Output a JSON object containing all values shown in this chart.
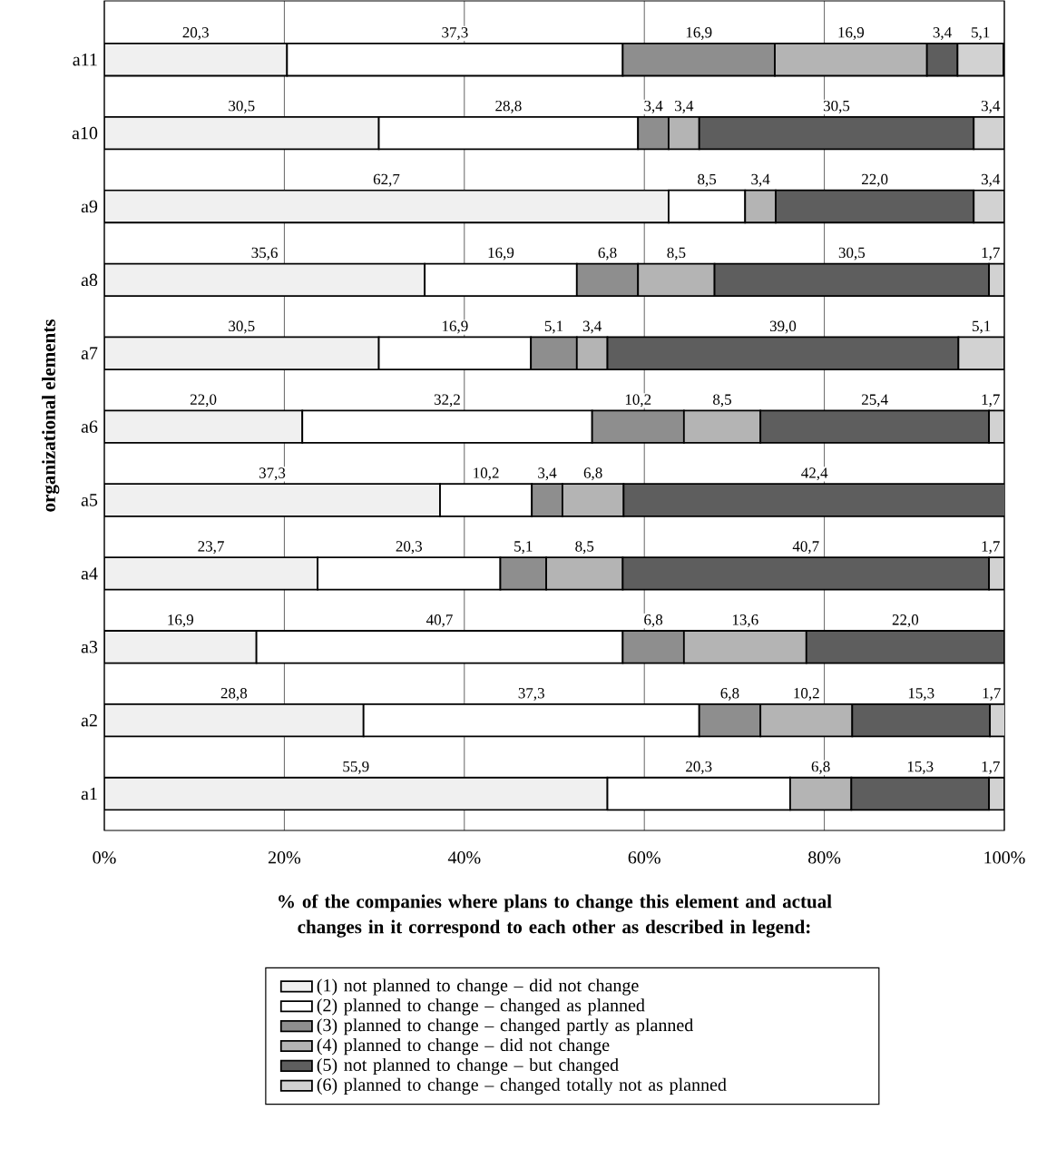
{
  "chart_data": {
    "type": "bar",
    "orientation": "horizontal",
    "stacked": true,
    "xlabel": "% of the companies where plans to change this element and actual changes in it correspond to each other as described in legend:",
    "ylabel": "organizational elements",
    "categories": [
      "a11",
      "a10",
      "a9",
      "a8",
      "a7",
      "a6",
      "a5",
      "a4",
      "a3",
      "a2",
      "a1"
    ],
    "series": [
      {
        "name": "(1) not planned to change – did not change",
        "color": "#f0f0f0",
        "values": [
          20.3,
          30.5,
          62.7,
          35.6,
          30.5,
          22.0,
          37.3,
          23.7,
          16.9,
          28.8,
          55.9
        ],
        "value_labels": [
          "20,3",
          "30,5",
          "62,7",
          "35,6",
          "30,5",
          "22,0",
          "37,3",
          "23,7",
          "16,9",
          "28,8",
          "55,9"
        ]
      },
      {
        "name": "(2) planned to change – changed as planned",
        "color": "#ffffff",
        "values": [
          37.3,
          28.8,
          8.5,
          16.9,
          16.9,
          32.2,
          10.2,
          20.3,
          40.7,
          37.3,
          20.3
        ],
        "value_labels": [
          "37,3",
          "28,8",
          "8,5",
          "16,9",
          "16,9",
          "32,2",
          "10,2",
          "20,3",
          "40,7",
          "37,3",
          "20,3"
        ]
      },
      {
        "name": "(3) planned to change – changed partly as planned",
        "color": "#8e8e8e",
        "values": [
          16.9,
          3.4,
          null,
          6.8,
          5.1,
          10.2,
          3.4,
          5.1,
          6.8,
          6.8,
          null
        ],
        "value_labels": [
          "16,9",
          "3,4",
          null,
          "6,8",
          "5,1",
          "10,2",
          "3,4",
          "5,1",
          "6,8",
          "6,8",
          null
        ]
      },
      {
        "name": "(4) planned to change – did not change",
        "color": "#b4b4b4",
        "values": [
          16.9,
          3.4,
          3.4,
          8.5,
          3.4,
          8.5,
          6.8,
          8.5,
          13.6,
          10.2,
          6.8
        ],
        "value_labels": [
          "16,9",
          "3,4",
          "3,4",
          "8,5",
          "3,4",
          "8,5",
          "6,8",
          "8,5",
          "13,6",
          "10,2",
          "6,8"
        ]
      },
      {
        "name": "(5) not planned to change – but changed",
        "color": "#5e5e5e",
        "values": [
          3.4,
          30.5,
          22.0,
          30.5,
          39.0,
          25.4,
          42.4,
          40.7,
          22.0,
          15.3,
          15.3
        ],
        "value_labels": [
          "3,4",
          "30,5",
          "22,0",
          "30,5",
          "39,0",
          "25,4",
          "42,4",
          "40,7",
          "22,0",
          "15,3",
          "15,3"
        ]
      },
      {
        "name": "(6) planned to change – changed totally not as planned",
        "color": "#d2d2d2",
        "values": [
          5.1,
          3.4,
          3.4,
          1.7,
          5.1,
          1.7,
          null,
          1.7,
          null,
          1.7,
          1.7
        ],
        "value_labels": [
          "5,1",
          "3,4",
          "3,4",
          "1,7",
          "5,1",
          "1,7",
          null,
          "1,7",
          null,
          "1,7",
          "1,7"
        ]
      }
    ],
    "xlim": [
      0,
      100
    ],
    "xticks": [
      {
        "value": 0,
        "label": "0%"
      },
      {
        "value": 20,
        "label": "20%"
      },
      {
        "value": 40,
        "label": "40%"
      },
      {
        "value": 60,
        "label": "60%"
      },
      {
        "value": 80,
        "label": "80%"
      },
      {
        "value": 100,
        "label": "100%"
      }
    ],
    "grid": "x",
    "legend": "bottom"
  }
}
